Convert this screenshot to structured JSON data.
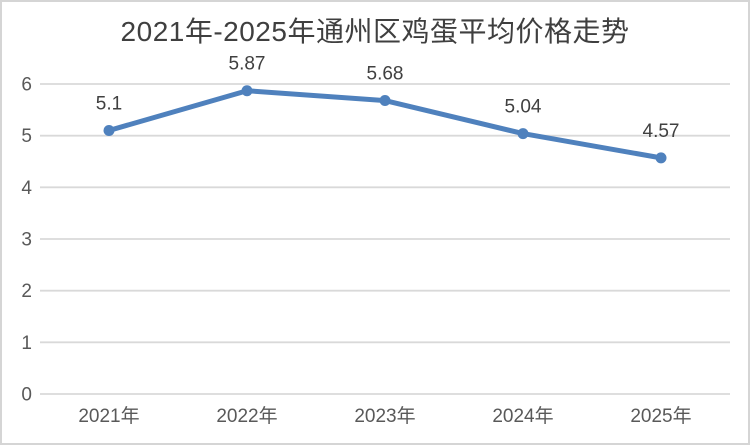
{
  "chart_data": {
    "type": "line",
    "title": "2021年-2025年通州区鸡蛋平均价格走势",
    "categories": [
      "2021年",
      "2022年",
      "2023年",
      "2024年",
      "2025年"
    ],
    "values": [
      5.1,
      5.87,
      5.68,
      5.04,
      4.57
    ],
    "point_labels": [
      "5.1",
      "5.87",
      "5.68",
      "5.04",
      "4.57"
    ],
    "xlabel": "",
    "ylabel": "",
    "ylim": [
      0,
      6
    ],
    "yticks": [
      0,
      1,
      2,
      3,
      4,
      5,
      6
    ],
    "grid": true,
    "legend": "none",
    "marker": "circle",
    "colors": {
      "series": "#4F81BD",
      "gridline": "#D9D9D9",
      "axis_text": "#595959",
      "label_text": "#404040",
      "title_text": "#3F3F3F",
      "border": "#D5D5D5",
      "background": "#FFFFFF"
    }
  }
}
